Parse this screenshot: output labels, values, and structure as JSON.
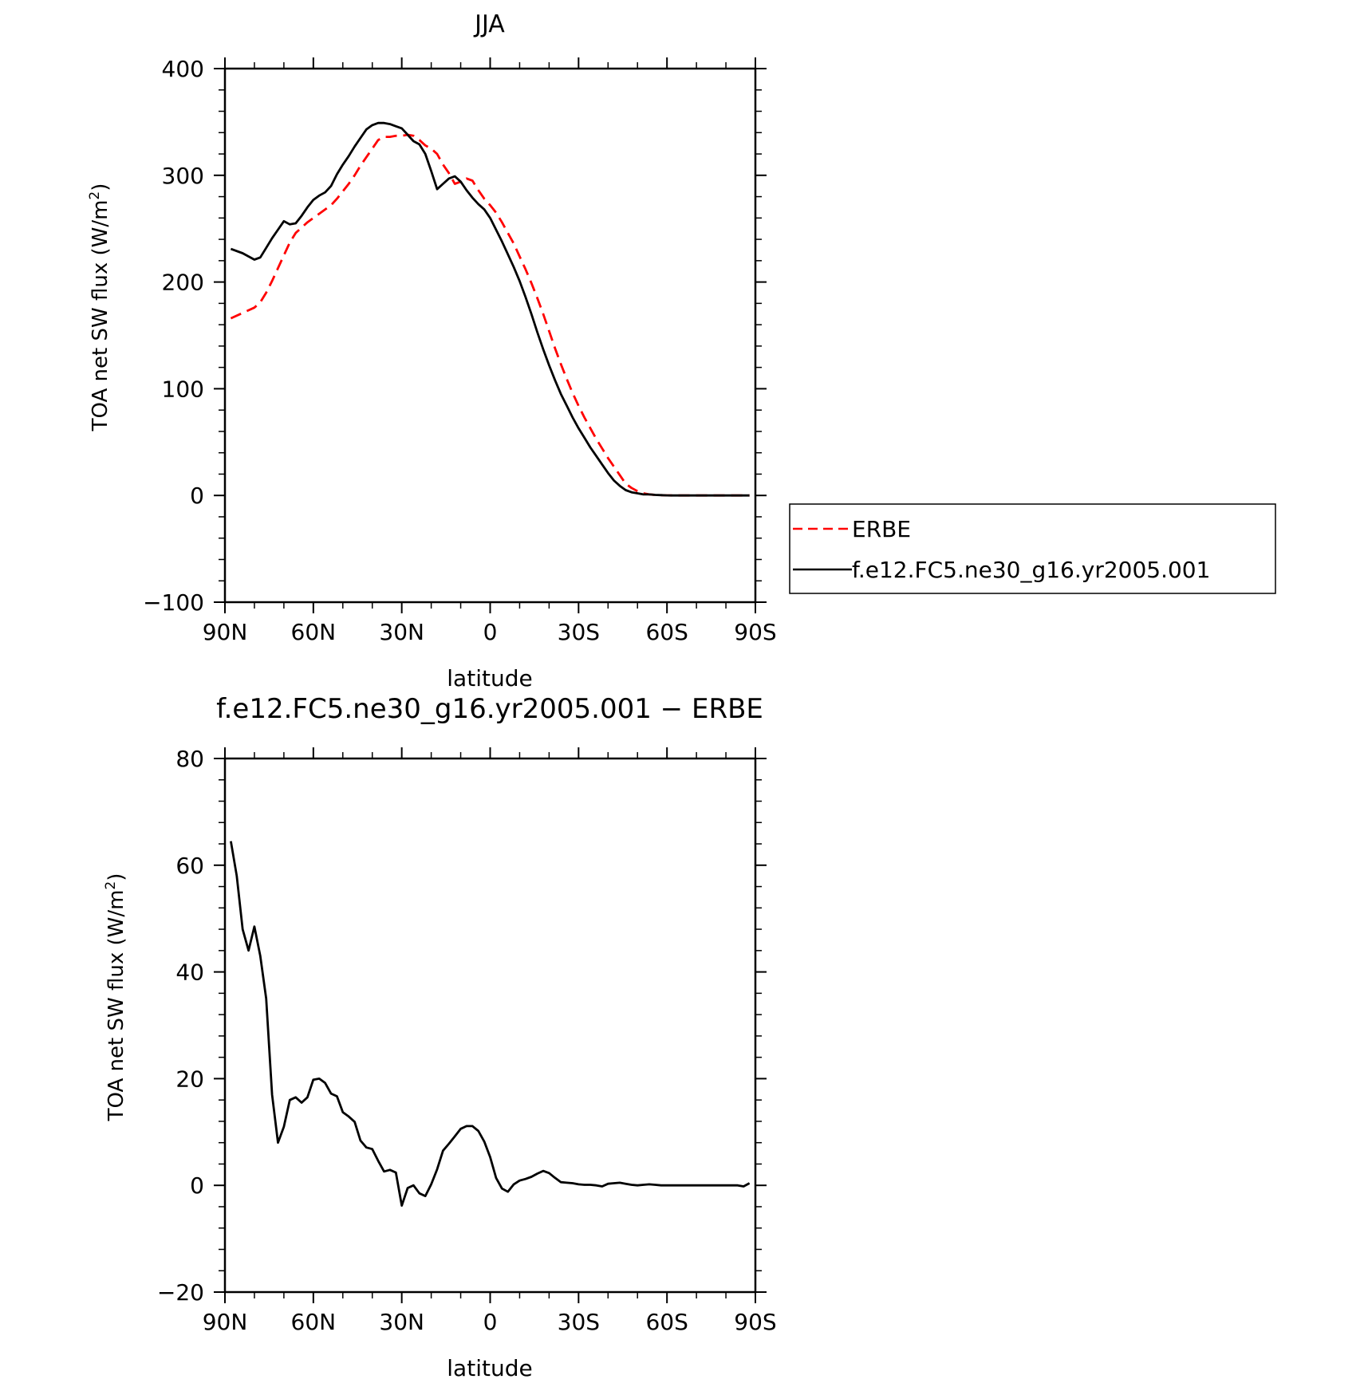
{
  "chart_data": [
    {
      "type": "line",
      "title": "JJA",
      "xlabel": "latitude",
      "ylabel_main": "TOA net SW flux (W/m",
      "ylabel_sup": "2",
      "ylabel_close": ")",
      "xlim": [
        90,
        -90
      ],
      "ylim": [
        -100,
        400
      ],
      "x_ticks": [
        90,
        60,
        30,
        0,
        -30,
        -60,
        -90
      ],
      "x_tick_labels": [
        "90N",
        "60N",
        "30N",
        "0",
        "30S",
        "60S",
        "90S"
      ],
      "y_ticks": [
        -100,
        0,
        100,
        200,
        300,
        400
      ],
      "y_tick_labels": [
        "−100",
        "0",
        "100",
        "200",
        "300",
        "400"
      ],
      "legend": {
        "placement": "right",
        "entries": [
          {
            "label": "ERBE",
            "color": "#ff0000",
            "dash": "dashed"
          },
          {
            "label": "f.e12.FC5.ne30_g16.yr2005.001",
            "color": "#000000",
            "dash": "solid"
          }
        ]
      },
      "series": [
        {
          "name": "ERBE",
          "color": "#ff0000",
          "dash": "dashed",
          "x": [
            88,
            84,
            80,
            78,
            76,
            74,
            72,
            70,
            68,
            66,
            64,
            62,
            60,
            58,
            56,
            54,
            52,
            50,
            48,
            46,
            44,
            42,
            40,
            38,
            36,
            34,
            32,
            30,
            28,
            26,
            24,
            22,
            20,
            18,
            16,
            14,
            12,
            10,
            8,
            6,
            4,
            2,
            0,
            -2,
            -4,
            -6,
            -8,
            -10,
            -12,
            -14,
            -16,
            -18,
            -20,
            -22,
            -24,
            -26,
            -28,
            -30,
            -32,
            -34,
            -36,
            -38,
            -40,
            -42,
            -44,
            -46,
            -48,
            -50,
            -52,
            -54,
            -56,
            -58,
            -60,
            -62,
            -64,
            -66,
            -68,
            -70,
            -72,
            -74,
            -76,
            -78,
            -80,
            -82,
            -84,
            -86,
            -88
          ],
          "y": [
            166,
            171,
            176,
            181,
            190,
            201,
            213,
            225,
            237,
            246,
            251,
            256,
            260,
            264,
            268,
            272,
            278,
            285,
            292,
            300,
            309,
            317,
            325,
            333,
            336,
            336,
            337,
            337,
            338,
            337,
            333,
            328,
            325,
            320,
            310,
            302,
            292,
            294,
            297,
            295,
            286,
            278,
            272,
            265,
            256,
            246,
            236,
            224,
            212,
            199,
            185,
            170,
            154,
            138,
            123,
            109,
            96,
            84,
            73,
            63,
            53,
            44,
            35,
            27,
            19,
            11,
            7,
            4,
            2,
            1,
            0.5,
            0.3,
            0.1,
            0,
            0,
            0,
            0,
            0,
            0,
            0,
            0,
            0,
            0,
            0,
            0,
            0,
            0
          ]
        },
        {
          "name": "f.e12.FC5.ne30_g16.yr2005.001",
          "color": "#000000",
          "dash": "solid",
          "x": [
            88,
            84,
            80,
            78,
            76,
            74,
            72,
            70,
            68,
            66,
            64,
            62,
            60,
            58,
            56,
            54,
            52,
            50,
            48,
            46,
            44,
            42,
            40,
            38,
            36,
            34,
            32,
            30,
            28,
            26,
            24,
            22,
            20,
            18,
            16,
            14,
            12,
            10,
            8,
            6,
            4,
            2,
            0,
            -2,
            -4,
            -6,
            -8,
            -10,
            -12,
            -14,
            -16,
            -18,
            -20,
            -22,
            -24,
            -26,
            -28,
            -30,
            -32,
            -34,
            -36,
            -38,
            -40,
            -42,
            -44,
            -46,
            -48,
            -50,
            -52,
            -54,
            -56,
            -58,
            -60,
            -62,
            -64,
            -66,
            -68,
            -70,
            -72,
            -74,
            -76,
            -78,
            -80,
            -82,
            -84,
            -86,
            -88
          ],
          "y": [
            231,
            227,
            221,
            223,
            232,
            241,
            249,
            257,
            254,
            255,
            262,
            270,
            277,
            281,
            284,
            290,
            301,
            310,
            318,
            327,
            335,
            343,
            347,
            349,
            349,
            348,
            346,
            344,
            338,
            332,
            329,
            320,
            304,
            287,
            292,
            297,
            299,
            294,
            286,
            279,
            273,
            268,
            260,
            249,
            238,
            226,
            214,
            201,
            186,
            170,
            153,
            137,
            122,
            108,
            95,
            84,
            73,
            63,
            54,
            45,
            37,
            29,
            21,
            14,
            9,
            5,
            3,
            2,
            1,
            1,
            0.5,
            0.3,
            0.1,
            0,
            0,
            0,
            0,
            0,
            0,
            0,
            0,
            0,
            0,
            0,
            0,
            0,
            0
          ]
        }
      ]
    },
    {
      "type": "line",
      "title": "f.e12.FC5.ne30_g16.yr2005.001 − ERBE",
      "xlabel": "latitude",
      "ylabel_main": "TOA net SW flux (W/m",
      "ylabel_sup": "2",
      "ylabel_close": ")",
      "xlim": [
        90,
        -90
      ],
      "ylim": [
        -20,
        80
      ],
      "x_ticks": [
        90,
        60,
        30,
        0,
        -30,
        -60,
        -90
      ],
      "x_tick_labels": [
        "90N",
        "60N",
        "30N",
        "0",
        "30S",
        "60S",
        "90S"
      ],
      "y_ticks": [
        -20,
        0,
        20,
        40,
        60,
        80
      ],
      "y_tick_labels": [
        "−20",
        "0",
        "20",
        "40",
        "60",
        "80"
      ],
      "series": [
        {
          "color": "#000000",
          "dash": "solid",
          "x": [
            88,
            86,
            84,
            82,
            80,
            78,
            76,
            74,
            72,
            70,
            68,
            66,
            64,
            62,
            60,
            58,
            56,
            54,
            52,
            50,
            48,
            46,
            44,
            42,
            40,
            38,
            36,
            34,
            32,
            30,
            28,
            26,
            24,
            22,
            20,
            18,
            16,
            14,
            12,
            10,
            8,
            6,
            4,
            2,
            0,
            -2,
            -4,
            -6,
            -8,
            -10,
            -12,
            -14,
            -16,
            -18,
            -20,
            -22,
            -24,
            -26,
            -28,
            -30,
            -32,
            -34,
            -36,
            -38,
            -40,
            -42,
            -44,
            -46,
            -48,
            -50,
            -52,
            -54,
            -56,
            -58,
            -60,
            -62,
            -64,
            -66,
            -68,
            -70,
            -72,
            -74,
            -76,
            -78,
            -80,
            -82,
            -84,
            -86,
            -88
          ],
          "y": [
            64.5,
            58,
            48,
            44,
            48.5,
            43,
            35,
            17,
            8,
            11,
            16,
            16.5,
            15.5,
            16.5,
            19.8,
            20,
            19.2,
            17.2,
            16.7,
            13.7,
            12.9,
            11.9,
            8.4,
            7.1,
            6.8,
            4.6,
            2.6,
            2.9,
            2.4,
            -3.8,
            -0.5,
            0,
            -1.5,
            -2,
            0.2,
            3,
            6.5,
            7.8,
            9.2,
            10.6,
            11.1,
            11.1,
            10.2,
            8.2,
            5.3,
            1.4,
            -0.6,
            -1.2,
            0.2,
            0.9,
            1.2,
            1.6,
            2.2,
            2.7,
            2.3,
            1.4,
            0.6,
            0.5,
            0.4,
            0.2,
            0.1,
            0.1,
            0,
            -0.2,
            0.3,
            0.4,
            0.5,
            0.3,
            0.1,
            0,
            0.1,
            0.2,
            0.1,
            0,
            0,
            0,
            0,
            0,
            0,
            0,
            0,
            0,
            0,
            0,
            0,
            0,
            0,
            -0.2,
            0.4
          ]
        }
      ]
    }
  ]
}
